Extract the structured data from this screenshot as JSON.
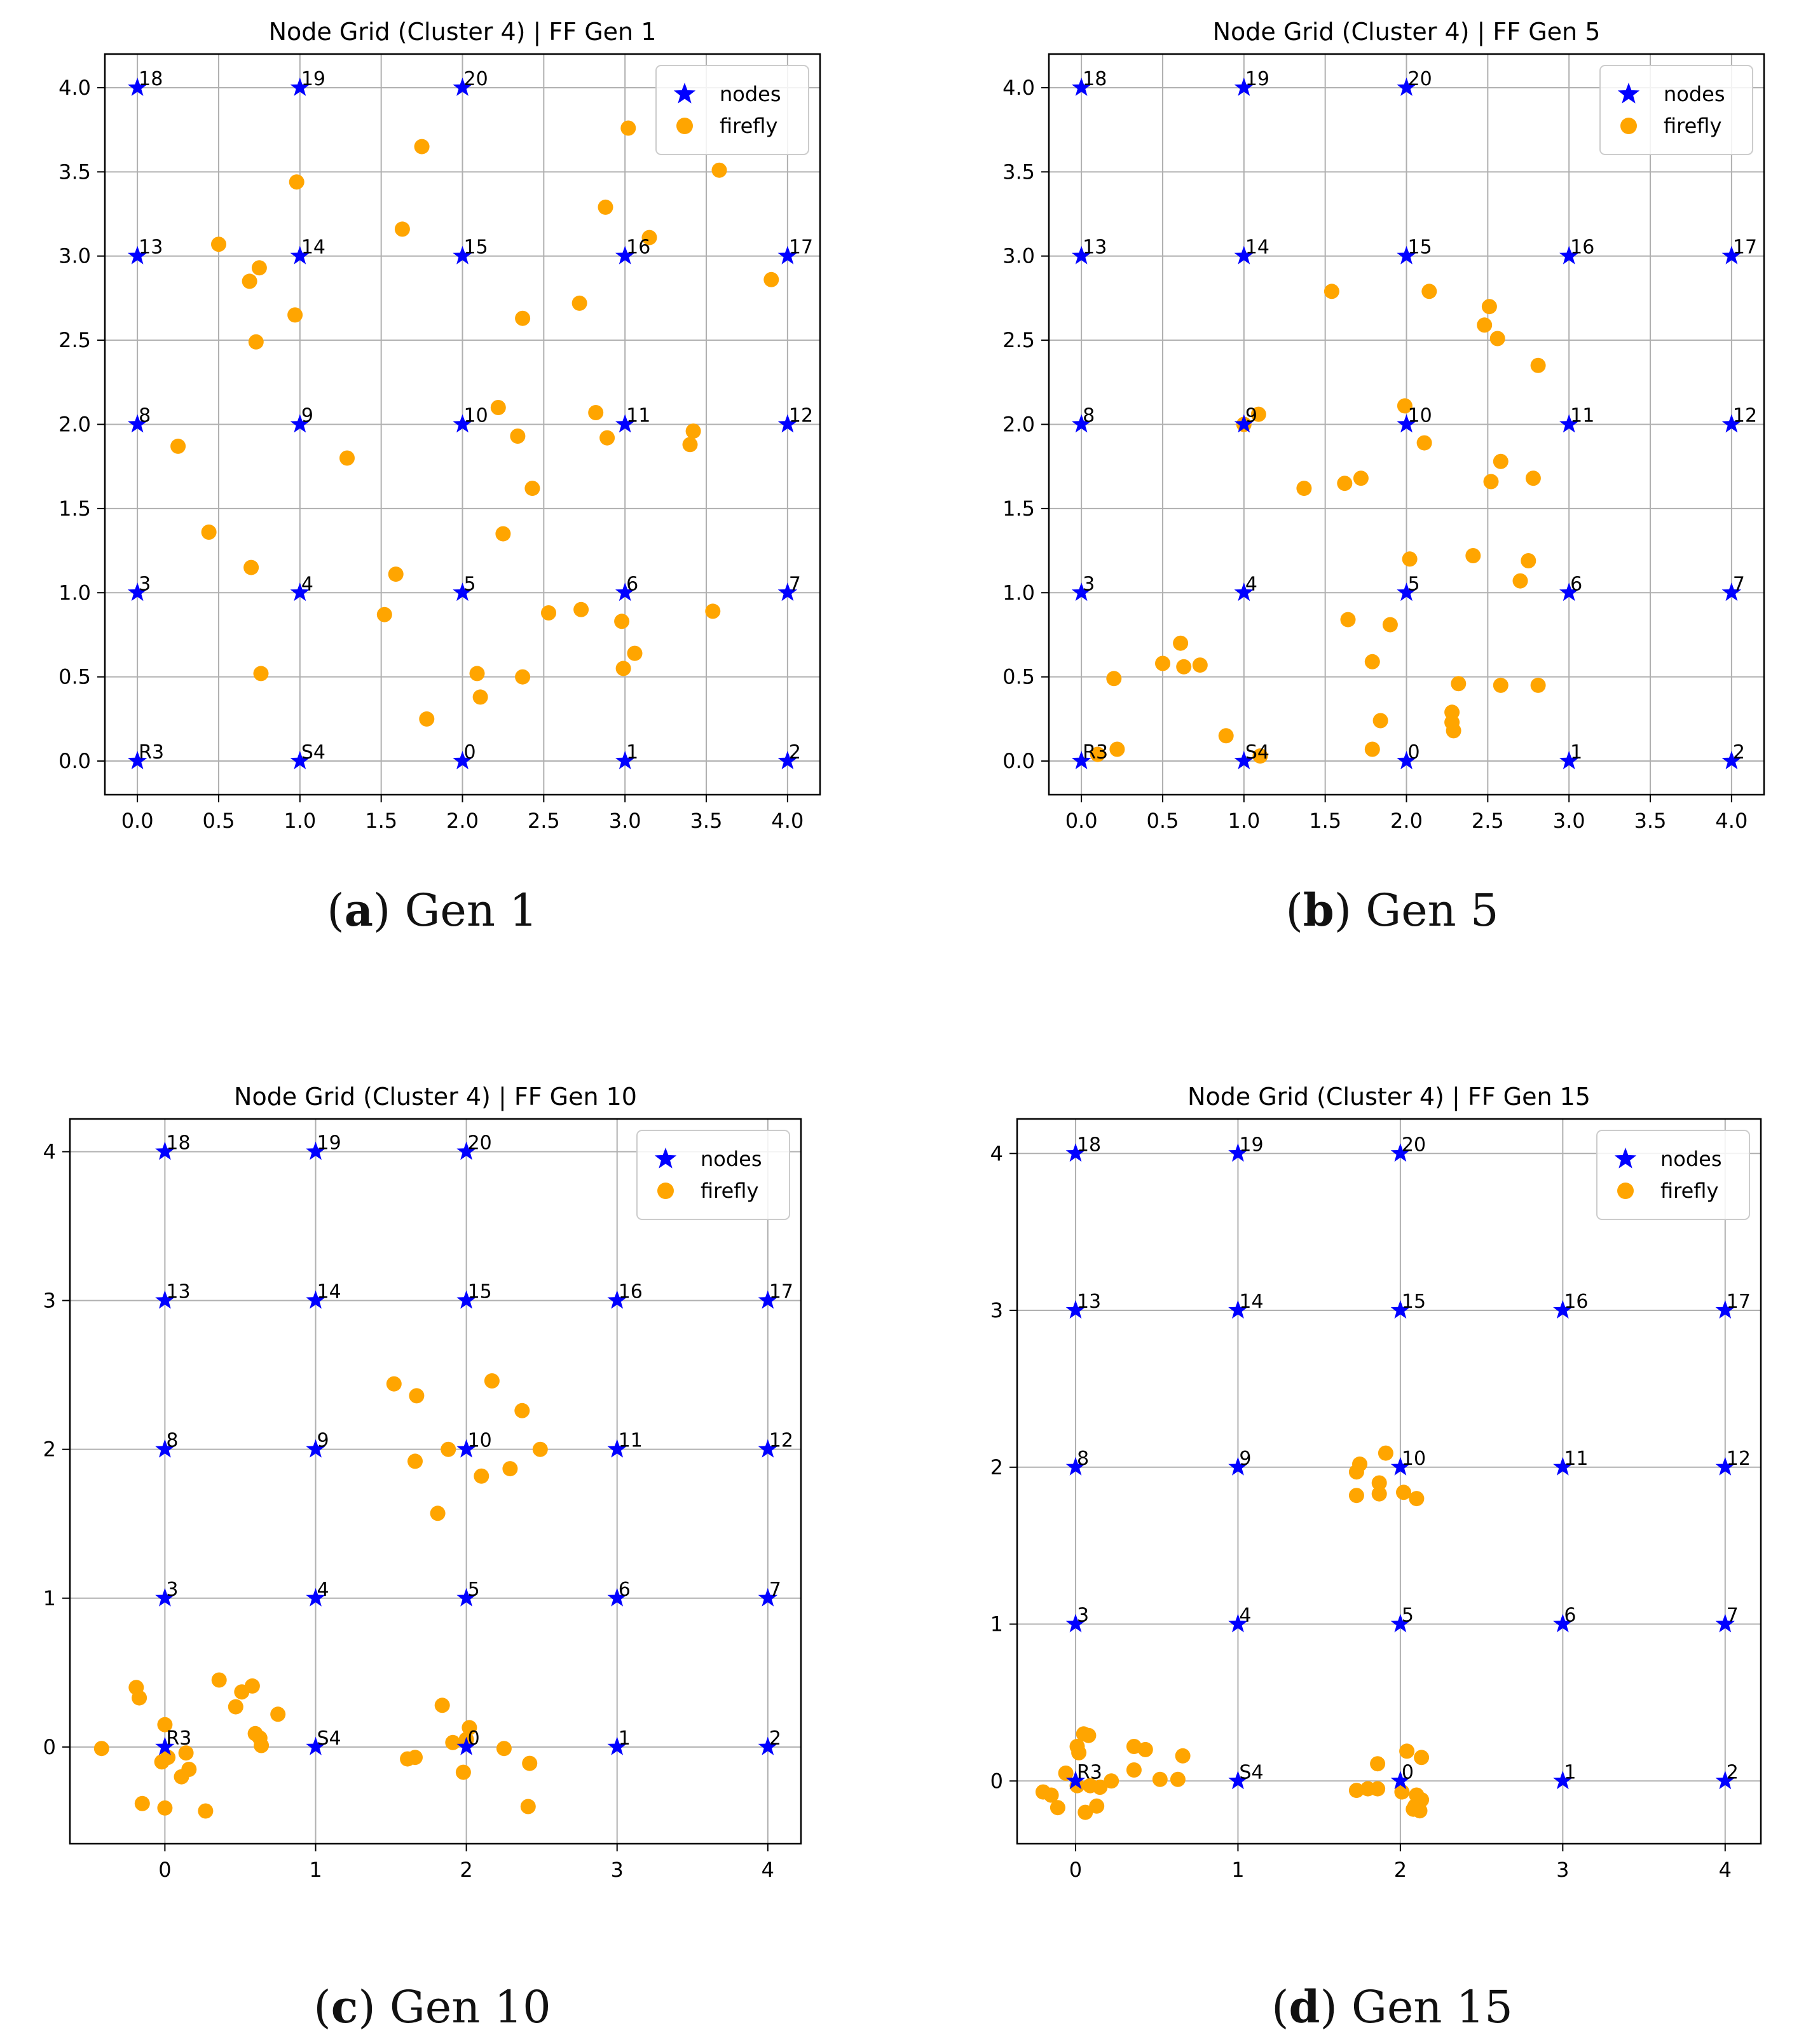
{
  "colors": {
    "node": "#0000ff",
    "firefly": "#ffa500",
    "grid": "#b0b0b0",
    "axis": "#000000"
  },
  "legend": {
    "nodes_label": "nodes",
    "firefly_label": "firefly",
    "location": "upper-right"
  },
  "nodes": [
    {
      "label": "0",
      "x": 2,
      "y": 0
    },
    {
      "label": "1",
      "x": 3,
      "y": 0
    },
    {
      "label": "2",
      "x": 4,
      "y": 0
    },
    {
      "label": "3",
      "x": 0,
      "y": 1
    },
    {
      "label": "4",
      "x": 1,
      "y": 1
    },
    {
      "label": "5",
      "x": 2,
      "y": 1
    },
    {
      "label": "6",
      "x": 3,
      "y": 1
    },
    {
      "label": "7",
      "x": 4,
      "y": 1
    },
    {
      "label": "8",
      "x": 0,
      "y": 2
    },
    {
      "label": "9",
      "x": 1,
      "y": 2
    },
    {
      "label": "10",
      "x": 2,
      "y": 2
    },
    {
      "label": "11",
      "x": 3,
      "y": 2
    },
    {
      "label": "12",
      "x": 4,
      "y": 2
    },
    {
      "label": "13",
      "x": 0,
      "y": 3
    },
    {
      "label": "14",
      "x": 1,
      "y": 3
    },
    {
      "label": "15",
      "x": 2,
      "y": 3
    },
    {
      "label": "16",
      "x": 3,
      "y": 3
    },
    {
      "label": "17",
      "x": 4,
      "y": 3
    },
    {
      "label": "18",
      "x": 0,
      "y": 4
    },
    {
      "label": "19",
      "x": 1,
      "y": 4
    },
    {
      "label": "20",
      "x": 2,
      "y": 4
    },
    {
      "label": "R3",
      "x": 0,
      "y": 0
    },
    {
      "label": "S4",
      "x": 1,
      "y": 0
    }
  ],
  "chart_data": [
    {
      "type": "scatter",
      "id": "a",
      "title": "Node Grid (Cluster 4) | FF Gen 1",
      "caption_letter": "a",
      "caption_text": "Gen 1",
      "xlim": [
        -0.2,
        4.2
      ],
      "ylim": [
        -0.2,
        4.2
      ],
      "xticks": [
        0.0,
        0.5,
        1.0,
        1.5,
        2.0,
        2.5,
        3.0,
        3.5,
        4.0
      ],
      "xtick_labels": [
        "0.0",
        "0.5",
        "1.0",
        "1.5",
        "2.0",
        "2.5",
        "3.0",
        "3.5",
        "4.0"
      ],
      "yticks": [
        0.0,
        0.5,
        1.0,
        1.5,
        2.0,
        2.5,
        3.0,
        3.5,
        4.0
      ],
      "ytick_labels": [
        "0.0",
        "0.5",
        "1.0",
        "1.5",
        "2.0",
        "2.5",
        "3.0",
        "3.5",
        "4.0"
      ],
      "series": [
        {
          "name": "firefly",
          "points": [
            [
              3.02,
              3.76
            ],
            [
              1.75,
              3.65
            ],
            [
              3.58,
              3.51
            ],
            [
              0.98,
              3.44
            ],
            [
              2.88,
              3.29
            ],
            [
              1.63,
              3.16
            ],
            [
              3.15,
              3.11
            ],
            [
              0.5,
              3.07
            ],
            [
              0.75,
              2.93
            ],
            [
              3.9,
              2.86
            ],
            [
              0.69,
              2.85
            ],
            [
              2.72,
              2.72
            ],
            [
              0.97,
              2.65
            ],
            [
              2.37,
              2.63
            ],
            [
              0.73,
              2.49
            ],
            [
              2.22,
              2.1
            ],
            [
              2.82,
              2.07
            ],
            [
              3.42,
              1.96
            ],
            [
              2.34,
              1.93
            ],
            [
              2.89,
              1.92
            ],
            [
              3.4,
              1.88
            ],
            [
              0.25,
              1.87
            ],
            [
              1.29,
              1.8
            ],
            [
              2.43,
              1.62
            ],
            [
              0.44,
              1.36
            ],
            [
              2.25,
              1.35
            ],
            [
              0.7,
              1.15
            ],
            [
              1.59,
              1.11
            ],
            [
              2.73,
              0.9
            ],
            [
              3.54,
              0.89
            ],
            [
              2.53,
              0.88
            ],
            [
              1.52,
              0.87
            ],
            [
              2.98,
              0.83
            ],
            [
              3.06,
              0.64
            ],
            [
              2.99,
              0.55
            ],
            [
              0.76,
              0.52
            ],
            [
              2.09,
              0.52
            ],
            [
              2.37,
              0.5
            ],
            [
              2.11,
              0.38
            ],
            [
              1.78,
              0.25
            ]
          ]
        }
      ]
    },
    {
      "type": "scatter",
      "id": "b",
      "title": "Node Grid (Cluster 4) | FF Gen 5",
      "caption_letter": "b",
      "caption_text": "Gen 5",
      "xlim": [
        -0.2,
        4.2
      ],
      "ylim": [
        -0.2,
        4.2
      ],
      "xticks": [
        0.0,
        0.5,
        1.0,
        1.5,
        2.0,
        2.5,
        3.0,
        3.5,
        4.0
      ],
      "xtick_labels": [
        "0.0",
        "0.5",
        "1.0",
        "1.5",
        "2.0",
        "2.5",
        "3.0",
        "3.5",
        "4.0"
      ],
      "yticks": [
        0.0,
        0.5,
        1.0,
        1.5,
        2.0,
        2.5,
        3.0,
        3.5,
        4.0
      ],
      "ytick_labels": [
        "0.0",
        "0.5",
        "1.0",
        "1.5",
        "2.0",
        "2.5",
        "3.0",
        "3.5",
        "4.0"
      ],
      "series": [
        {
          "name": "firefly",
          "points": [
            [
              1.54,
              2.79
            ],
            [
              2.14,
              2.79
            ],
            [
              2.51,
              2.7
            ],
            [
              2.48,
              2.59
            ],
            [
              2.56,
              2.51
            ],
            [
              2.81,
              2.35
            ],
            [
              1.99,
              2.11
            ],
            [
              1.09,
              2.06
            ],
            [
              1.0,
              2.0
            ],
            [
              2.11,
              1.89
            ],
            [
              2.58,
              1.78
            ],
            [
              1.72,
              1.68
            ],
            [
              2.78,
              1.68
            ],
            [
              1.62,
              1.65
            ],
            [
              2.52,
              1.66
            ],
            [
              1.37,
              1.62
            ],
            [
              2.41,
              1.22
            ],
            [
              2.02,
              1.2
            ],
            [
              2.75,
              1.19
            ],
            [
              2.7,
              1.07
            ],
            [
              1.64,
              0.84
            ],
            [
              1.9,
              0.81
            ],
            [
              0.61,
              0.7
            ],
            [
              1.79,
              0.59
            ],
            [
              0.5,
              0.58
            ],
            [
              0.73,
              0.57
            ],
            [
              0.63,
              0.56
            ],
            [
              0.2,
              0.49
            ],
            [
              2.32,
              0.46
            ],
            [
              2.58,
              0.45
            ],
            [
              2.81,
              0.45
            ],
            [
              2.28,
              0.29
            ],
            [
              1.84,
              0.24
            ],
            [
              2.28,
              0.23
            ],
            [
              2.29,
              0.18
            ],
            [
              0.89,
              0.15
            ],
            [
              0.22,
              0.07
            ],
            [
              1.79,
              0.07
            ],
            [
              1.1,
              0.03
            ],
            [
              0.1,
              0.04
            ]
          ]
        }
      ]
    },
    {
      "type": "scatter",
      "id": "c",
      "title": "Node Grid (Cluster 4) | FF Gen 10",
      "caption_letter": "c",
      "caption_text": "Gen 10",
      "xlim": [
        -0.63,
        4.22
      ],
      "ylim": [
        -0.65,
        4.22
      ],
      "xticks": [
        0,
        1,
        2,
        3,
        4
      ],
      "xtick_labels": [
        "0",
        "1",
        "2",
        "3",
        "4"
      ],
      "yticks": [
        0,
        1,
        2,
        3,
        4
      ],
      "ytick_labels": [
        "0",
        "1",
        "2",
        "3",
        "4"
      ],
      "series": [
        {
          "name": "firefly",
          "points": [
            [
              2.17,
              2.46
            ],
            [
              1.52,
              2.44
            ],
            [
              1.67,
              2.36
            ],
            [
              2.37,
              2.26
            ],
            [
              1.88,
              2.0
            ],
            [
              2.49,
              2.0
            ],
            [
              1.66,
              1.92
            ],
            [
              2.29,
              1.87
            ],
            [
              2.1,
              1.82
            ],
            [
              1.81,
              1.57
            ],
            [
              0.36,
              0.45
            ],
            [
              -0.19,
              0.4
            ],
            [
              0.58,
              0.41
            ],
            [
              0.51,
              0.37
            ],
            [
              -0.17,
              0.33
            ],
            [
              0.47,
              0.27
            ],
            [
              0.75,
              0.22
            ],
            [
              0.0,
              0.15
            ],
            [
              0.6,
              0.09
            ],
            [
              0.64,
              0.01
            ],
            [
              0.63,
              0.06
            ],
            [
              0.14,
              -0.04
            ],
            [
              -0.42,
              -0.01
            ],
            [
              0.02,
              -0.07
            ],
            [
              -0.02,
              -0.1
            ],
            [
              0.16,
              -0.15
            ],
            [
              0.11,
              -0.2
            ],
            [
              -0.15,
              -0.38
            ],
            [
              0.0,
              -0.41
            ],
            [
              0.27,
              -0.43
            ],
            [
              1.84,
              0.28
            ],
            [
              2.02,
              0.13
            ],
            [
              1.91,
              0.03
            ],
            [
              2.0,
              0.05
            ],
            [
              2.25,
              -0.01
            ],
            [
              1.61,
              -0.08
            ],
            [
              1.66,
              -0.07
            ],
            [
              1.98,
              -0.17
            ],
            [
              2.42,
              -0.11
            ],
            [
              2.41,
              -0.4
            ]
          ]
        }
      ]
    },
    {
      "type": "scatter",
      "id": "d",
      "title": "Node Grid (Cluster 4) | FF Gen 15",
      "caption_letter": "d",
      "caption_text": "Gen 15",
      "xlim": [
        -0.36,
        4.22
      ],
      "ylim": [
        -0.4,
        4.22
      ],
      "xticks": [
        0,
        1,
        2,
        3,
        4
      ],
      "xtick_labels": [
        "0",
        "1",
        "2",
        "3",
        "4"
      ],
      "yticks": [
        0,
        1,
        2,
        3,
        4
      ],
      "ytick_labels": [
        "0",
        "1",
        "2",
        "3",
        "4"
      ],
      "series": [
        {
          "name": "firefly",
          "points": [
            [
              1.91,
              2.09
            ],
            [
              1.75,
              2.02
            ],
            [
              1.73,
              1.97
            ],
            [
              1.87,
              1.9
            ],
            [
              1.87,
              1.83
            ],
            [
              2.02,
              1.84
            ],
            [
              1.73,
              1.82
            ],
            [
              2.1,
              1.8
            ],
            [
              0.05,
              0.3
            ],
            [
              0.08,
              0.29
            ],
            [
              0.01,
              0.22
            ],
            [
              0.02,
              0.18
            ],
            [
              0.36,
              0.22
            ],
            [
              0.43,
              0.2
            ],
            [
              0.66,
              0.16
            ],
            [
              0.36,
              0.07
            ],
            [
              -0.06,
              0.05
            ],
            [
              0.52,
              0.01
            ],
            [
              0.63,
              0.01
            ],
            [
              0.22,
              0.0
            ],
            [
              0.01,
              -0.03
            ],
            [
              0.09,
              -0.03
            ],
            [
              0.15,
              -0.04
            ],
            [
              -0.2,
              -0.07
            ],
            [
              -0.15,
              -0.09
            ],
            [
              -0.11,
              -0.17
            ],
            [
              0.13,
              -0.16
            ],
            [
              0.06,
              -0.2
            ],
            [
              2.04,
              0.19
            ],
            [
              2.13,
              0.15
            ],
            [
              1.86,
              0.11
            ],
            [
              1.8,
              -0.05
            ],
            [
              1.86,
              -0.05
            ],
            [
              2.01,
              -0.07
            ],
            [
              2.1,
              -0.09
            ],
            [
              2.13,
              -0.12
            ],
            [
              2.09,
              -0.16
            ],
            [
              2.12,
              -0.19
            ],
            [
              1.73,
              -0.06
            ],
            [
              2.08,
              -0.18
            ]
          ]
        }
      ]
    }
  ]
}
